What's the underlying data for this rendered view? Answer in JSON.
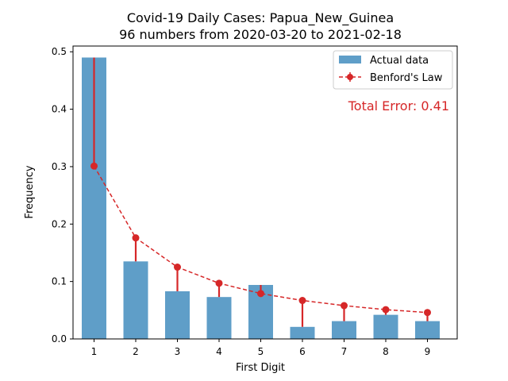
{
  "chart_data": {
    "type": "bar",
    "title": "Covid-19 Daily Cases: Papua_New_Guinea",
    "subtitle": "96 numbers from 2020-03-20 to 2021-02-18",
    "xlabel": "First Digit",
    "ylabel": "Frequency",
    "categories": [
      "1",
      "2",
      "3",
      "4",
      "5",
      "6",
      "7",
      "8",
      "9"
    ],
    "series": [
      {
        "name": "Actual data",
        "type": "bar",
        "color": "#5f9ec8",
        "values": [
          0.49,
          0.135,
          0.083,
          0.073,
          0.094,
          0.021,
          0.031,
          0.042,
          0.031
        ]
      },
      {
        "name": "Benford's Law",
        "type": "line",
        "color": "#d62728",
        "values": [
          0.301,
          0.176,
          0.125,
          0.097,
          0.079,
          0.067,
          0.058,
          0.051,
          0.046
        ]
      }
    ],
    "annotation": "Total Error: 0.41",
    "annotation_color": "#d62728",
    "ylim": [
      0,
      0.51
    ],
    "yticks": [
      "0.0",
      "0.1",
      "0.2",
      "0.3",
      "0.4",
      "0.5"
    ],
    "legend": "top-right",
    "grid": false
  }
}
